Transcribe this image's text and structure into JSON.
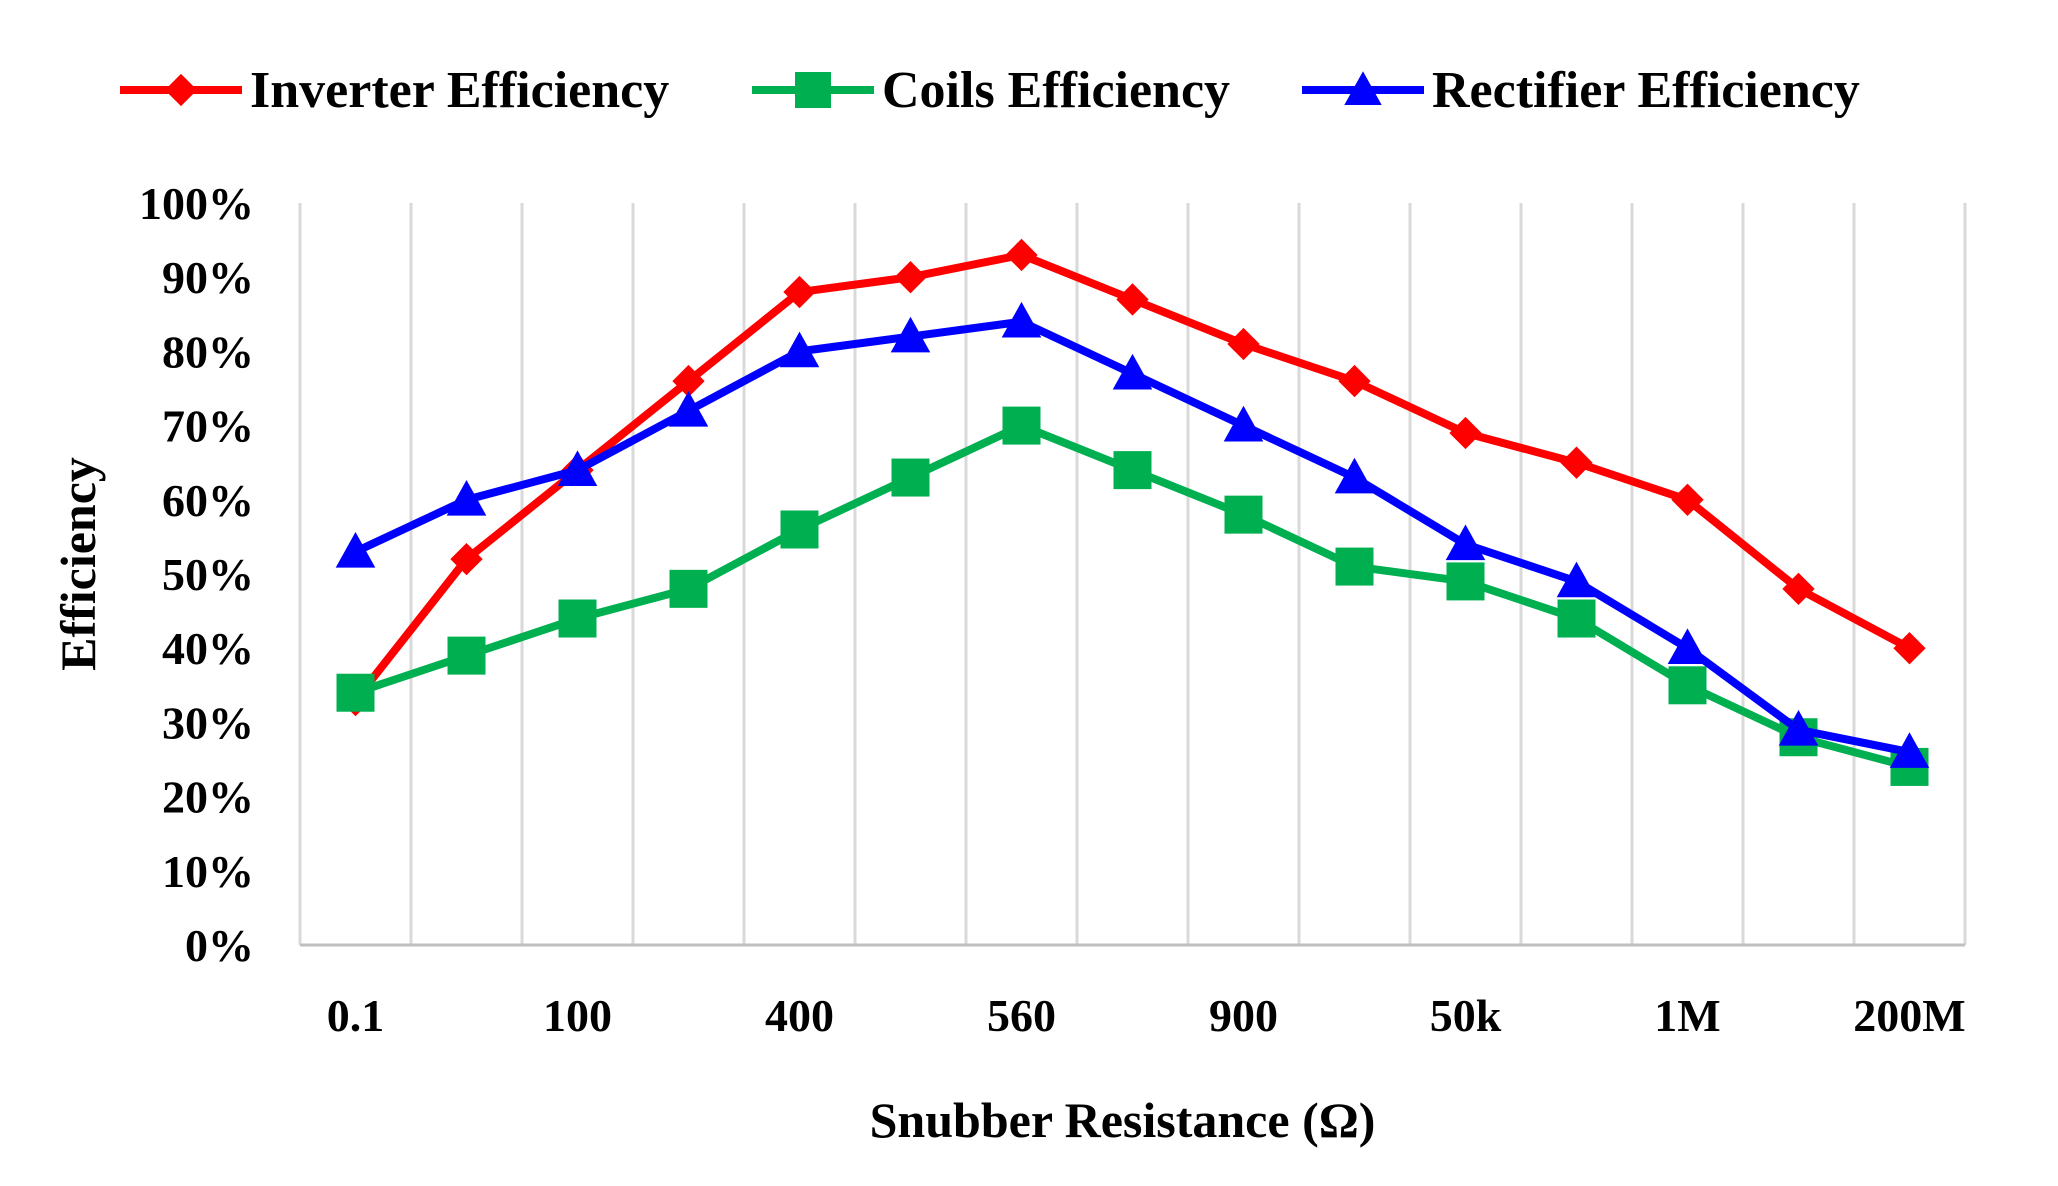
{
  "chart_data": {
    "type": "line",
    "title": "",
    "xlabel": "Snubber Resistance (Ω)",
    "ylabel": "Efficiency",
    "ylim": [
      0,
      100
    ],
    "y_ticks": [
      "0%",
      "10%",
      "20%",
      "30%",
      "40%",
      "50%",
      "60%",
      "70%",
      "80%",
      "90%",
      "100%"
    ],
    "categories": [
      "0.1",
      "",
      "100",
      "",
      "400",
      "",
      "560",
      "",
      "900",
      "",
      "50k",
      "",
      "1M",
      "",
      "200M"
    ],
    "x_tick_labels": [
      "0.1",
      "100",
      "400",
      "560",
      "900",
      "50k",
      "1M",
      "200M"
    ],
    "grid": "vertical",
    "legend_position": "top",
    "series": [
      {
        "name": "Inverter Efficiency",
        "color": "#ff0000",
        "marker": "diamond",
        "values": [
          33,
          52,
          64,
          76,
          88,
          90,
          93,
          87,
          81,
          76,
          69,
          65,
          60,
          48,
          40
        ]
      },
      {
        "name": "Coils Efficiency",
        "color": "#00b050",
        "marker": "square",
        "values": [
          34,
          39,
          44,
          48,
          56,
          63,
          70,
          64,
          58,
          51,
          49,
          44,
          35,
          28,
          24
        ]
      },
      {
        "name": "Rectifier Efficiency",
        "color": "#0000ff",
        "marker": "triangle",
        "values": [
          53,
          60,
          64,
          72,
          80,
          82,
          84,
          77,
          70,
          63,
          54,
          49,
          40,
          29,
          26
        ]
      }
    ]
  }
}
